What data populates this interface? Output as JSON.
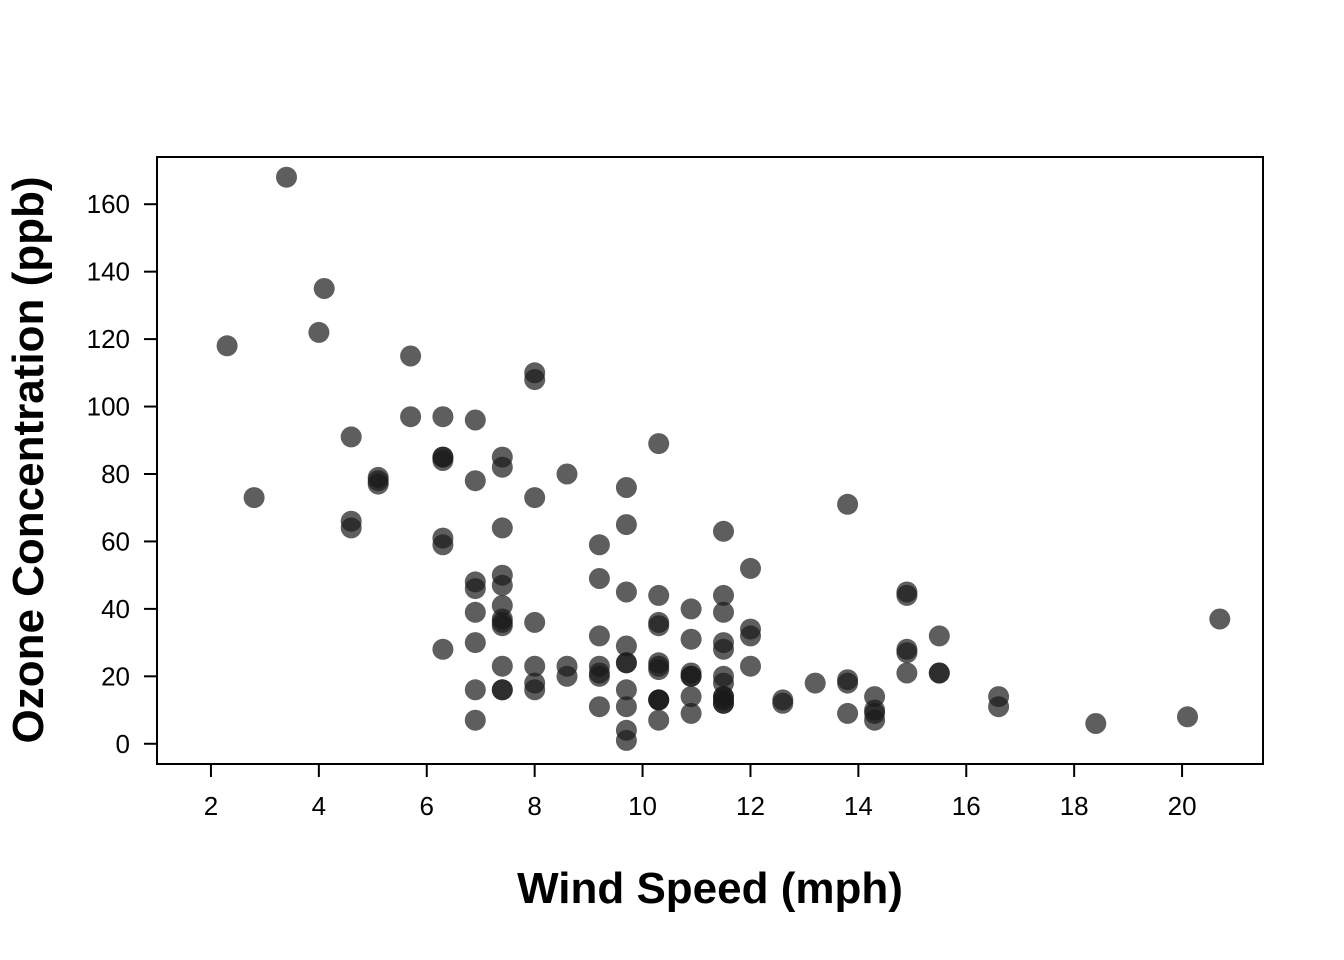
{
  "chart_data": {
    "type": "scatter",
    "title": "",
    "xlabel": "Wind Speed (mph)",
    "ylabel": "Ozone Concentration (ppb)",
    "xlim": [
      1,
      21.5
    ],
    "ylim": [
      -6,
      174
    ],
    "xticks": [
      "2",
      "4",
      "6",
      "8",
      "10",
      "12",
      "14",
      "16",
      "18",
      "20"
    ],
    "yticks": [
      "0",
      "20",
      "40",
      "60",
      "80",
      "100",
      "120",
      "140",
      "160"
    ],
    "grid": false,
    "point_color": "#1a1a1a",
    "point_opacity": 0.7,
    "x": [
      2.3,
      2.8,
      3.4,
      4.0,
      4.1,
      4.6,
      4.6,
      4.6,
      5.1,
      5.1,
      5.1,
      5.7,
      5.7,
      6.3,
      6.3,
      6.3,
      6.3,
      6.3,
      6.3,
      6.3,
      6.9,
      6.9,
      6.9,
      6.9,
      6.9,
      6.9,
      6.9,
      6.9,
      7.4,
      7.4,
      7.4,
      7.4,
      7.4,
      7.4,
      7.4,
      7.4,
      7.4,
      7.4,
      7.4,
      7.4,
      8.0,
      8.0,
      8.0,
      8.0,
      8.0,
      8.0,
      8.0,
      8.6,
      8.6,
      8.6,
      9.2,
      9.2,
      9.2,
      9.2,
      9.2,
      9.2,
      9.2,
      9.7,
      9.7,
      9.7,
      9.7,
      9.7,
      9.7,
      9.7,
      9.7,
      9.7,
      9.7,
      10.3,
      10.3,
      10.3,
      10.3,
      10.3,
      10.3,
      10.3,
      10.3,
      10.3,
      10.3,
      10.3,
      10.9,
      10.9,
      10.9,
      10.9,
      10.9,
      10.9,
      10.9,
      11.5,
      11.5,
      11.5,
      11.5,
      11.5,
      11.5,
      11.5,
      11.5,
      11.5,
      11.5,
      11.5,
      11.5,
      12.0,
      12.0,
      12.0,
      12.0,
      12.6,
      12.6,
      13.2,
      13.8,
      13.8,
      13.8,
      13.8,
      14.3,
      14.3,
      14.3,
      14.3,
      14.9,
      14.9,
      14.9,
      14.9,
      14.9,
      15.5,
      15.5,
      15.5,
      16.6,
      16.6,
      18.4,
      20.1,
      20.7
    ],
    "y": [
      118,
      73,
      168,
      122,
      135,
      91,
      66,
      64,
      79,
      77,
      78,
      115,
      97,
      97,
      85,
      84,
      61,
      59,
      28,
      85,
      96,
      78,
      48,
      46,
      39,
      30,
      16,
      7,
      85,
      82,
      64,
      50,
      47,
      41,
      37,
      35,
      23,
      16,
      16,
      36,
      110,
      108,
      73,
      36,
      23,
      18,
      16,
      80,
      23,
      20,
      59,
      49,
      32,
      23,
      20,
      11,
      21,
      76,
      65,
      45,
      29,
      24,
      16,
      11,
      4,
      1,
      24,
      89,
      44,
      36,
      35,
      24,
      23,
      22,
      13,
      13,
      7,
      13,
      40,
      31,
      21,
      20,
      14,
      9,
      20,
      63,
      44,
      39,
      30,
      28,
      20,
      18,
      14,
      13,
      12,
      14,
      12,
      52,
      34,
      32,
      23,
      13,
      12,
      18,
      71,
      19,
      18,
      9,
      14,
      10,
      9,
      7,
      45,
      44,
      28,
      27,
      21,
      32,
      21,
      21,
      14,
      11,
      6,
      8,
      37
    ]
  }
}
